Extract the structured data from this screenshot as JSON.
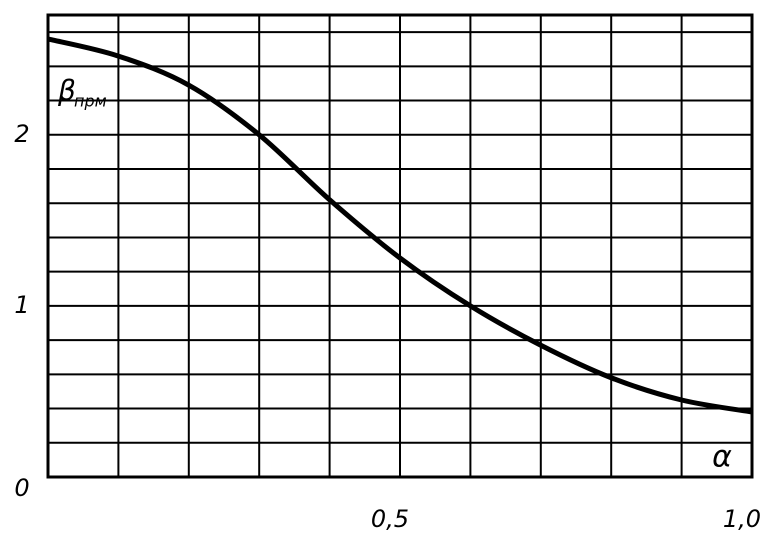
{
  "chart_data": {
    "type": "line",
    "ylabel": {
      "symbol": "β",
      "subscript": "прм"
    },
    "xlabel": "α",
    "x": [
      0,
      0.1,
      0.2,
      0.3,
      0.4,
      0.5,
      0.6,
      0.7,
      0.8,
      0.9,
      1.0
    ],
    "series": [
      {
        "color": "#000000",
        "values": [
          2.56,
          2.46,
          2.29,
          2.0,
          1.62,
          1.28,
          1.0,
          0.77,
          0.58,
          0.45,
          0.38
        ]
      }
    ],
    "xlim": [
      0,
      1.0
    ],
    "ylim": [
      0,
      2.7
    ],
    "xticks": [
      {
        "value": 0.5,
        "label": "0,5"
      },
      {
        "value": 1.0,
        "label": "1,0"
      }
    ],
    "yticks": [
      0,
      1,
      2
    ],
    "grid": true,
    "xgrid": [
      0,
      0.1,
      0.2,
      0.3,
      0.4,
      0.5,
      0.6,
      0.7,
      0.8,
      0.9,
      1.0
    ],
    "ygrid": [
      0,
      0.2,
      0.4,
      0.6,
      0.8,
      1.0,
      1.2,
      1.4,
      1.6,
      1.8,
      2.0,
      2.2,
      2.4,
      2.6
    ]
  }
}
